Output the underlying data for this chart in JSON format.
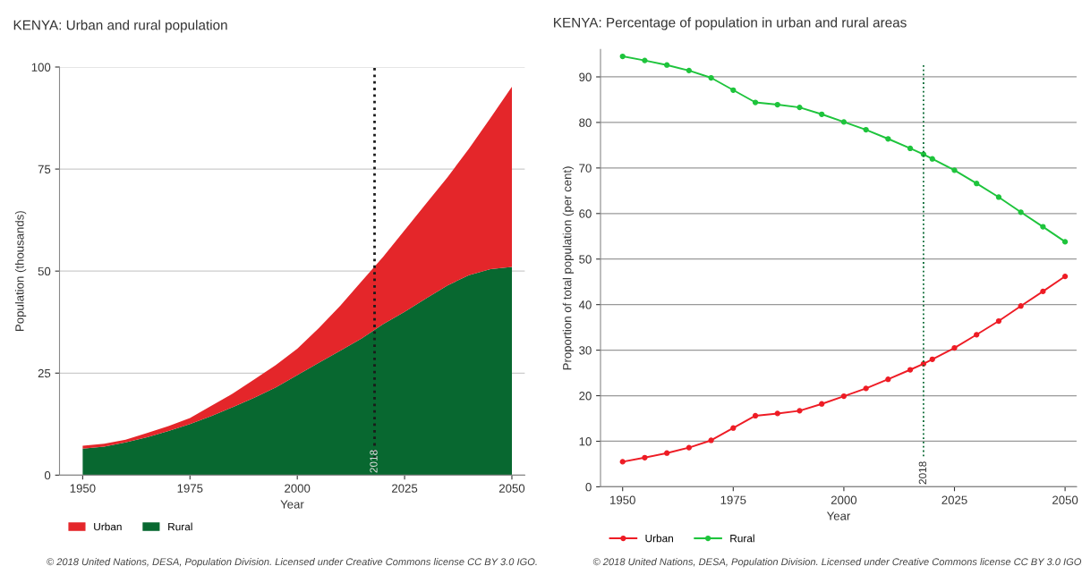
{
  "chart_data": [
    {
      "type": "area",
      "stacked": true,
      "title": "KENYA: Urban and rural population",
      "xlabel": "Year",
      "ylabel": "Population (thousands)",
      "x": [
        1950,
        1955,
        1960,
        1965,
        1970,
        1975,
        1980,
        1985,
        1990,
        1995,
        2000,
        2005,
        2010,
        2015,
        2020,
        2025,
        2030,
        2035,
        2040,
        2045,
        2050
      ],
      "series": [
        {
          "name": "Rural",
          "color": "#086830",
          "values": [
            6.5,
            7.0,
            8.0,
            9.3,
            10.8,
            12.5,
            14.5,
            16.7,
            19.0,
            21.5,
            24.5,
            27.5,
            30.5,
            33.5,
            37.0,
            40.0,
            43.3,
            46.5,
            49.0,
            50.5,
            51.0
          ]
        },
        {
          "name": "Urban",
          "color": "#e4262a",
          "values": [
            0.7,
            0.7,
            0.7,
            1.0,
            1.2,
            1.5,
            2.5,
            3.3,
            4.5,
            5.5,
            6.5,
            8.5,
            11.0,
            14.0,
            16.5,
            20.0,
            23.2,
            26.5,
            31.0,
            37.0,
            44.2
          ]
        }
      ],
      "xlim": [
        1944.6,
        2053
      ],
      "xticks": [
        1950,
        1975,
        2000,
        2025,
        2050
      ],
      "ylim": [
        0,
        100
      ],
      "yticks": [
        0,
        25,
        50,
        75,
        100
      ],
      "grid": "y",
      "legend": "bottom left",
      "ref_lines": [
        {
          "axis": "x",
          "value": 2018,
          "label": "2018",
          "color": "#1a1a1a",
          "line_style": "dotted"
        }
      ],
      "annotations": [
        "© 2018 United Nations, DESA, Population Division. Licensed under Creative Commons license CC BY 3.0 IGO."
      ]
    },
    {
      "type": "line",
      "title": "KENYA: Percentage of population in urban and rural areas",
      "xlabel": "Year",
      "ylabel": "Proportion of total population (per cent)",
      "x": [
        1950,
        1955,
        1960,
        1965,
        1970,
        1975,
        1980,
        1985,
        1990,
        1995,
        2000,
        2005,
        2010,
        2015,
        2018,
        2020,
        2025,
        2030,
        2035,
        2040,
        2045,
        2050
      ],
      "series": [
        {
          "name": "Urban",
          "color": "#ee1c25",
          "values": [
            5.5,
            6.4,
            7.4,
            8.6,
            10.2,
            12.9,
            15.6,
            16.1,
            16.7,
            18.2,
            19.9,
            21.6,
            23.6,
            25.7,
            27.0,
            28.0,
            30.5,
            33.4,
            36.4,
            39.7,
            42.9,
            46.2
          ]
        },
        {
          "name": "Rural",
          "color": "#1ec43c",
          "values": [
            94.5,
            93.6,
            92.6,
            91.4,
            89.8,
            87.1,
            84.4,
            83.9,
            83.3,
            81.8,
            80.1,
            78.4,
            76.4,
            74.3,
            73.0,
            72.0,
            69.5,
            66.6,
            63.6,
            60.3,
            57.1,
            53.8
          ]
        }
      ],
      "xlim": [
        1945,
        2052.6
      ],
      "xticks": [
        1950,
        1975,
        2000,
        2025,
        2050
      ],
      "ylim": [
        0,
        96
      ],
      "yticks": [
        0,
        10,
        20,
        30,
        40,
        50,
        60,
        70,
        80,
        90
      ],
      "grid": "y",
      "legend": "bottom left",
      "marker": "circle",
      "line_style": "solid",
      "ref_lines": [
        {
          "axis": "x",
          "value": 2018,
          "label": "2018",
          "color": "#0b6b35",
          "line_style": "dotted"
        }
      ],
      "annotations": [
        "© 2018 United Nations, DESA, Population Division. Licensed under Creative Commons license CC BY 3.0 IGO."
      ]
    }
  ]
}
